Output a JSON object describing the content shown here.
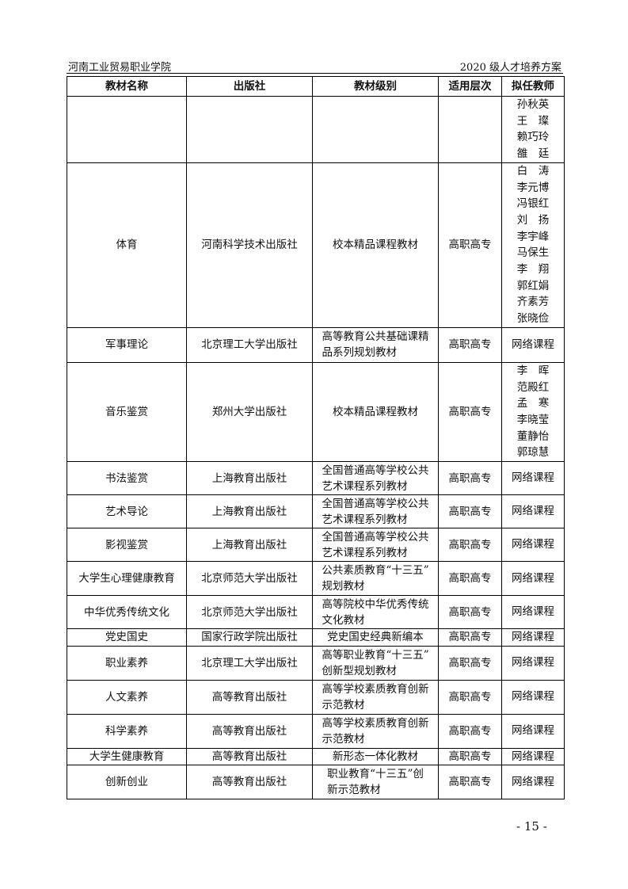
{
  "header": {
    "left": "河南工业贸易职业学院",
    "right": "2020 级人才培养方案"
  },
  "table": {
    "columns": [
      "教材名称",
      "出版社",
      "教材级别",
      "适用层次",
      "拟任教师"
    ],
    "rows": [
      {
        "name": "",
        "publisher": "",
        "level": [],
        "scope": "",
        "teachers": [
          "孙秋英",
          "王　璨",
          "赖巧玲",
          "雒　廷"
        ]
      },
      {
        "name": "体育",
        "publisher": "河南科学技术出版社",
        "level": [
          "校本精品课程教材"
        ],
        "scope": "高职高专",
        "teachers": [
          "白　涛",
          "李元博",
          "冯银红",
          "刘　扬",
          "李宇峰",
          "马保生",
          "李　翔",
          "郭红娟",
          "齐素芳",
          "张晓俭"
        ]
      },
      {
        "name": "军事理论",
        "publisher": "北京理工大学出版社",
        "level": [
          "高等教育公共基础课精",
          "品系列规划教材"
        ],
        "scope": "高职高专",
        "teachers": [
          "网络课程"
        ]
      },
      {
        "name": "音乐鉴赏",
        "publisher": "郑州大学出版社",
        "level": [
          "校本精品课程教材"
        ],
        "scope": "高职高专",
        "teachers": [
          "李　晖",
          "范殿红",
          "孟　寒",
          "李晓莹",
          "董静怡",
          "郭琼慧"
        ]
      },
      {
        "name": "书法鉴赏",
        "publisher": "上海教育出版社",
        "level": [
          "全国普通高等学校公共",
          "艺术课程系列教材"
        ],
        "scope": "高职高专",
        "teachers": [
          "网络课程"
        ]
      },
      {
        "name": "艺术导论",
        "publisher": "上海教育出版社",
        "level": [
          "全国普通高等学校公共",
          "艺术课程系列教材"
        ],
        "scope": "高职高专",
        "teachers": [
          "网络课程"
        ]
      },
      {
        "name": "影视鉴赏",
        "publisher": "上海教育出版社",
        "level": [
          "全国普通高等学校公共",
          "艺术课程系列教材"
        ],
        "scope": "高职高专",
        "teachers": [
          "网络课程"
        ]
      },
      {
        "name": "大学生心理健康教育",
        "publisher": "北京师范大学出版社",
        "level": [
          "公共素质教育“十三五”",
          "规划教材"
        ],
        "scope": "高职高专",
        "teachers": [
          "网络课程"
        ]
      },
      {
        "name": "中华优秀传统文化",
        "publisher": "北京师范大学出版社",
        "level": [
          "高等院校中华优秀传统",
          "文化教材"
        ],
        "scope": "高职高专",
        "teachers": [
          "网络课程"
        ]
      },
      {
        "name": "党史国史",
        "publisher": "国家行政学院出版社",
        "level": [
          "党史国史经典新编本"
        ],
        "scope": "高职高专",
        "teachers": [
          "网络课程"
        ]
      },
      {
        "name": "职业素养",
        "publisher": "北京理工大学出版社",
        "level": [
          "高等职业教育“十三五”",
          "创新型规划教材"
        ],
        "scope": "高职高专",
        "teachers": [
          "网络课程"
        ]
      },
      {
        "name": "人文素养",
        "publisher": "高等教育出版社",
        "level": [
          "高等学校素质教育创新",
          "示范教材"
        ],
        "scope": "高职高专",
        "teachers": [
          "网络课程"
        ]
      },
      {
        "name": "科学素养",
        "publisher": "高等教育出版社",
        "level": [
          "高等学校素质教育创新",
          "示范教材"
        ],
        "scope": "高职高专",
        "teachers": [
          "网络课程"
        ]
      },
      {
        "name": "大学生健康教育",
        "publisher": "高等教育出版社",
        "level": [
          "新形态一体化教材"
        ],
        "scope": "高职高专",
        "teachers": [
          "网络课程"
        ]
      },
      {
        "name": "创新创业",
        "publisher": "高等教育出版社",
        "level": [
          "职业教育“十三五”创",
          "新示范教材"
        ],
        "scope": "高职高专",
        "teachers": [
          "网络课程"
        ]
      }
    ]
  },
  "footer": {
    "page_number": "- 15 -"
  }
}
